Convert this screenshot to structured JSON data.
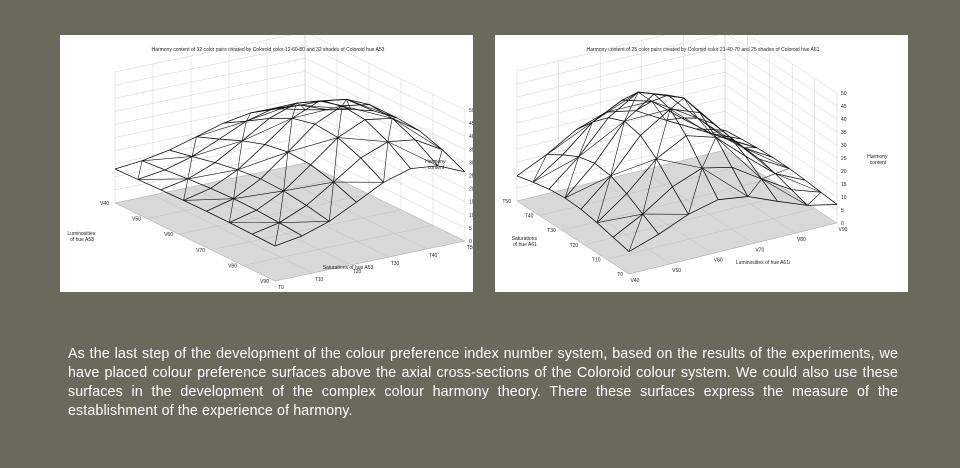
{
  "chart_data": [
    {
      "type": "surface3d",
      "title": "Harmony content of 32 color pairs created by Coloroid color 12-60-80 and 32 shades of Coloroid hue A53",
      "zlabel": "Harmony content",
      "zticks": [
        "0",
        "5",
        "10",
        "15",
        "20",
        "25",
        "30",
        "35",
        "40",
        "45",
        "50"
      ],
      "xlabel": "Saturations of hue A53",
      "xticks": [
        "T0",
        "T10",
        "T20",
        "T30",
        "T40",
        "T50"
      ],
      "ylabel": "Luminosities of hue A53",
      "yticks": [
        "V40",
        "V50",
        "V60",
        "V70",
        "V80",
        "V90"
      ]
    },
    {
      "type": "surface3d",
      "title": "Harmony content of 25 color pairs created by Coloroid color 21-40-70 and 25 shades of Coloroid hue A61",
      "zlabel": "Harmony content",
      "zticks": [
        "0",
        "5",
        "10",
        "15",
        "20",
        "25",
        "30",
        "35",
        "40",
        "45",
        "50"
      ],
      "xlabel": "Luminosities of hue A61i",
      "xticks": [
        "V40",
        "V50",
        "V60",
        "V70",
        "V80",
        "V90"
      ],
      "ylabel": "Saturations of hue A61",
      "yticks": [
        "T0",
        "T10",
        "T20",
        "T30",
        "T40",
        "T50"
      ]
    }
  ],
  "caption": "As the last step of the development of the colour preference index number system, based on the results of the experiments, we have placed colour preference surfaces above the axial cross-sections of the Coloroid colour system. We could also use these surfaces in the development of the complex colour harmony theory. There these surfaces express the measure of the establishment  of the experience  of harmony."
}
